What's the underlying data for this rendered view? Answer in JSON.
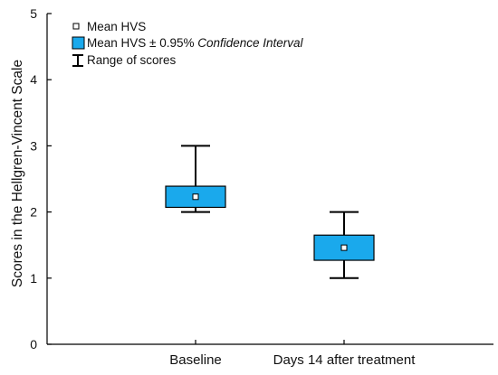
{
  "chart_data": {
    "type": "box",
    "ylabel": "Scores in the Hellgren-Vincent Scale",
    "xlabel": "",
    "ylim": [
      0,
      5
    ],
    "yticks": [
      "0",
      "1",
      "2",
      "3",
      "4",
      "5"
    ],
    "grid": false,
    "legend_position": "top-left",
    "categories": [
      "Baseline",
      "Days 14 after treatment"
    ],
    "series": [
      {
        "category": "Baseline",
        "mean": 2.23,
        "ci_low": 2.07,
        "ci_high": 2.39,
        "min": 2.0,
        "max": 3.0
      },
      {
        "category": "Days 14 after treatment",
        "mean": 1.46,
        "ci_low": 1.27,
        "ci_high": 1.65,
        "min": 1.0,
        "max": 2.0
      }
    ],
    "legend": [
      {
        "symbol": "mean-marker",
        "label": "Mean HVS"
      },
      {
        "symbol": "ci-box",
        "label_parts": [
          "Mean HVS ",
          "±",
          " 0.95% ",
          "Confidence Interval"
        ]
      },
      {
        "symbol": "range-whisker",
        "label": "Range of scores"
      }
    ],
    "colors": {
      "box_fill": "#1aa9ec",
      "stroke": "#000000",
      "mean_fill": "#ffffff"
    }
  }
}
